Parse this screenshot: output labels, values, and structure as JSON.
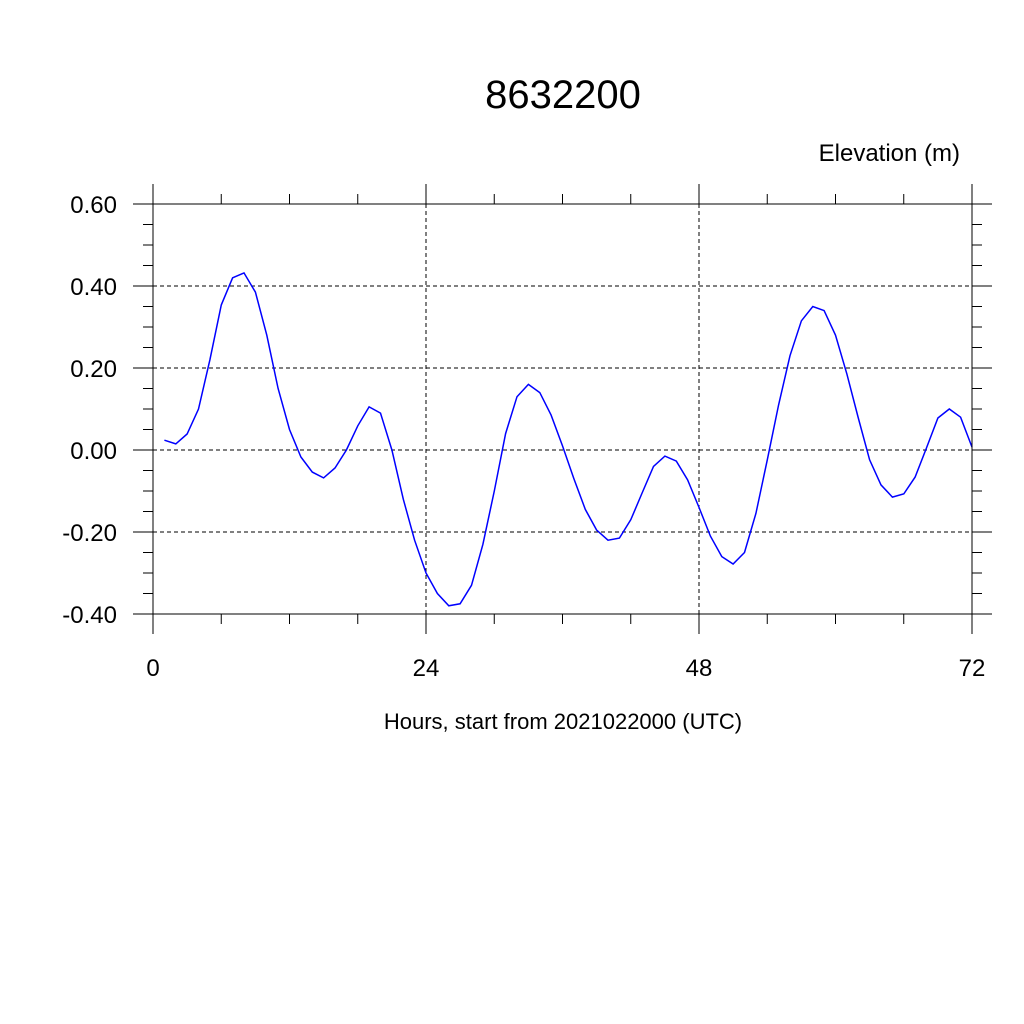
{
  "chart_data": {
    "type": "line",
    "title": "8632200",
    "ylabel": "Elevation (m)",
    "xlabel": "Hours, start from 2021022000 (UTC)",
    "xlim": [
      0,
      72
    ],
    "ylim": [
      -0.4,
      0.6
    ],
    "x_ticks": [
      0,
      24,
      48,
      72
    ],
    "x_tick_labels": [
      "0",
      "24",
      "48",
      "72"
    ],
    "y_ticks": [
      -0.4,
      -0.2,
      0.0,
      0.2,
      0.4,
      0.6
    ],
    "y_tick_labels": [
      "-0.40",
      "-0.20",
      "0.00",
      "0.20",
      "0.40",
      "0.60"
    ],
    "grid": true,
    "grid_style": "dashed",
    "series": [
      {
        "color": "#0000ff",
        "x": [
          1,
          2,
          3,
          4,
          5,
          6,
          7,
          8,
          9,
          10,
          11,
          12,
          13,
          14,
          15,
          16,
          17,
          18,
          19,
          20,
          21,
          22,
          23,
          24,
          25,
          26,
          27,
          28,
          29,
          30,
          31,
          32,
          33,
          34,
          35,
          36,
          37,
          38,
          39,
          40,
          41,
          42,
          43,
          44,
          45,
          46,
          47,
          48,
          49,
          50,
          51,
          52,
          53,
          54,
          55,
          56,
          57,
          58,
          59,
          60,
          61,
          62,
          63,
          64,
          65,
          66,
          67,
          68,
          69,
          70,
          71,
          72
        ],
        "y": [
          0.024,
          0.015,
          0.039,
          0.1,
          0.22,
          0.354,
          0.42,
          0.432,
          0.385,
          0.28,
          0.15,
          0.05,
          -0.017,
          -0.054,
          -0.068,
          -0.044,
          0.0,
          0.059,
          0.105,
          0.09,
          0.0,
          -0.12,
          -0.22,
          -0.3,
          -0.35,
          -0.38,
          -0.375,
          -0.33,
          -0.23,
          -0.1,
          0.04,
          0.13,
          0.16,
          0.14,
          0.085,
          0.01,
          -0.07,
          -0.145,
          -0.195,
          -0.22,
          -0.215,
          -0.17,
          -0.105,
          -0.04,
          -0.015,
          -0.027,
          -0.073,
          -0.14,
          -0.21,
          -0.26,
          -0.278,
          -0.25,
          -0.155,
          -0.024,
          0.11,
          0.23,
          0.315,
          0.35,
          0.34,
          0.28,
          0.185,
          0.078,
          -0.024,
          -0.085,
          -0.115,
          -0.107,
          -0.066,
          0.005,
          0.078,
          0.1,
          0.08,
          0.007
        ]
      }
    ]
  }
}
